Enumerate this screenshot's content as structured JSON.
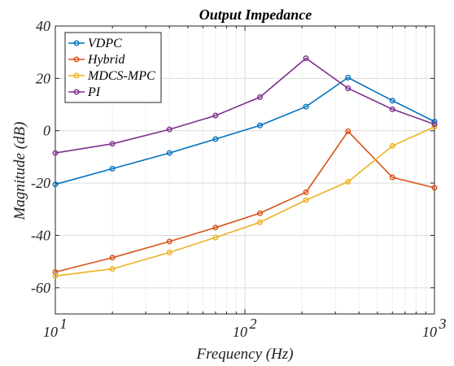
{
  "chart_data": {
    "type": "line",
    "title": "Output Impedance",
    "xlabel": "Frequency (Hz)",
    "ylabel": "Magnitude (dB)",
    "xscale": "log",
    "xlim": [
      10,
      1000
    ],
    "ylim": [
      -70,
      40
    ],
    "yticks": [
      40,
      20,
      0,
      -20,
      -40,
      -60
    ],
    "xticks": [
      {
        "value": 10,
        "base": "10",
        "exp": "1"
      },
      {
        "value": 100,
        "base": "10",
        "exp": "2"
      },
      {
        "value": 1000,
        "base": "10",
        "exp": "3"
      }
    ],
    "grid": true,
    "legend_position": "top-left",
    "x": [
      10,
      20,
      40,
      70,
      120,
      210,
      350,
      600,
      1000
    ],
    "series": [
      {
        "name": "VDPC",
        "color": "#0072BD",
        "values": [
          -20.5,
          -14.5,
          -8.5,
          -3.2,
          2.0,
          9.2,
          20.3,
          11.5,
          3.5
        ]
      },
      {
        "name": "Hybrid",
        "color": "#D95319",
        "values": [
          -54.0,
          -48.5,
          -42.3,
          -37.0,
          -31.5,
          -23.5,
          -0.2,
          -17.8,
          -21.8
        ]
      },
      {
        "name": "MDCS-MPC",
        "color": "#EDB120",
        "values": [
          -55.5,
          -52.8,
          -46.5,
          -40.8,
          -35.0,
          -26.5,
          -19.5,
          -5.8,
          1.5
        ]
      },
      {
        "name": "PI",
        "color": "#7E2F8E",
        "values": [
          -8.5,
          -5.0,
          0.5,
          5.8,
          12.8,
          27.7,
          16.2,
          8.2,
          2.5
        ]
      }
    ]
  }
}
